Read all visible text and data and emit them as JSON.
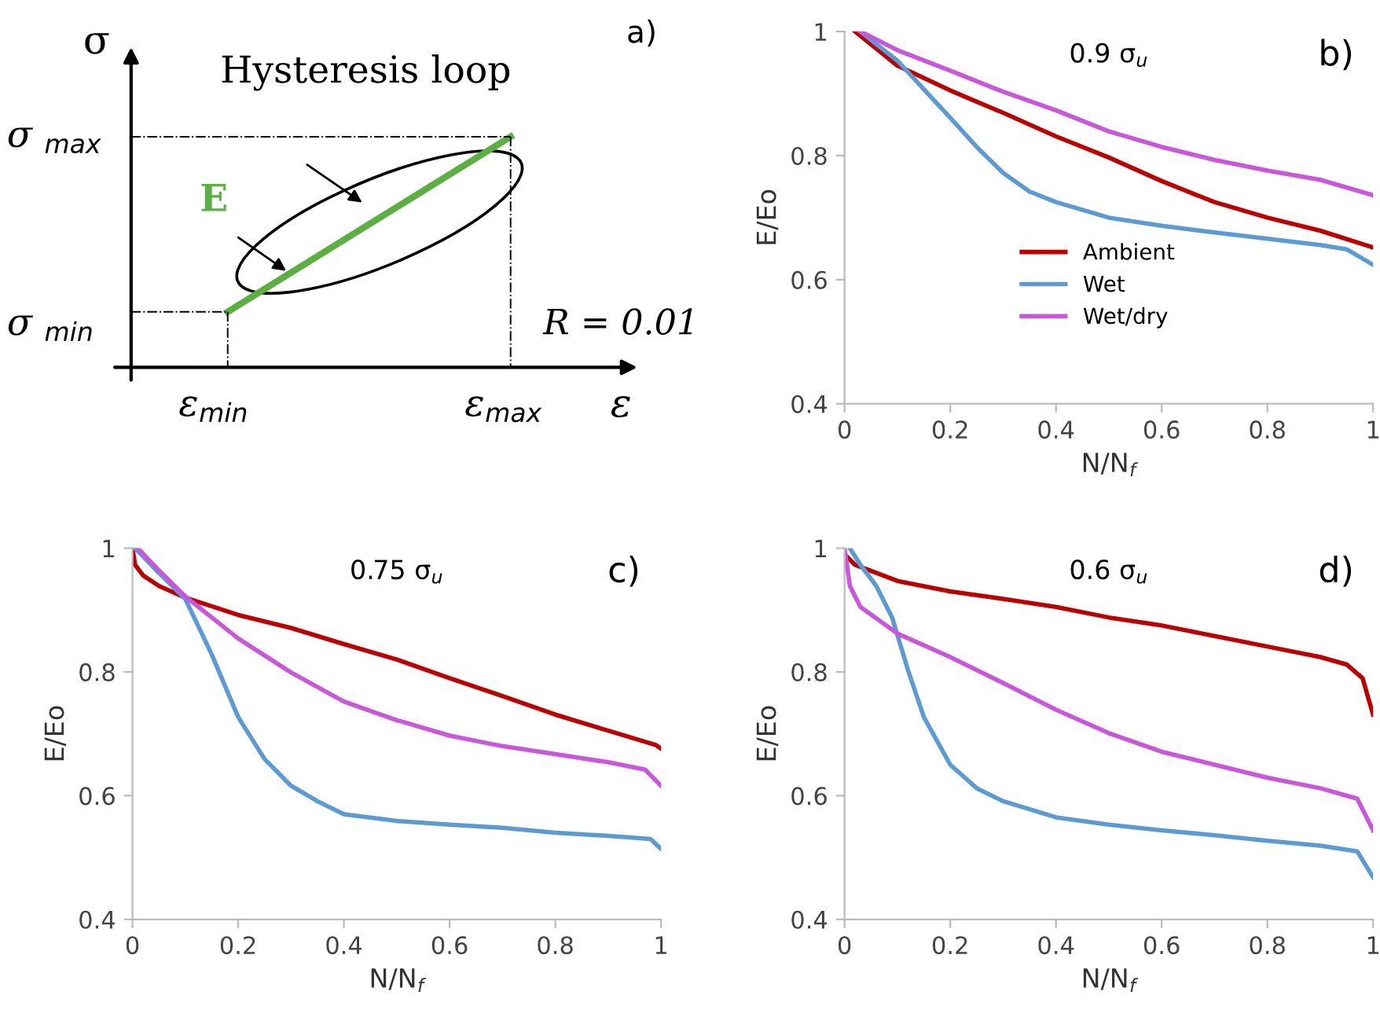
{
  "chart_data": [
    {
      "type": "other",
      "annotations": [
        "a)",
        "σ",
        "ε",
        "σ $_{max}$",
        "σ $_{min}$",
        "ε$_{min}$",
        "ε$_{max}$",
        "Hysteresis loop",
        "E",
        "R = 0.01"
      ]
    },
    {
      "type": "line",
      "xlabel": "N/N$_{f}$",
      "ylabel": "E/Eo",
      "annotations": [
        "b)",
        "0.9 σ$_{u}$"
      ],
      "xlim": [
        0,
        1
      ],
      "ylim": [
        0.4,
        1
      ],
      "xticks": [
        0,
        0.2,
        0.4,
        0.6,
        0.8,
        1
      ],
      "yticks": [
        0.4,
        0.6,
        0.8,
        1
      ],
      "grid": false,
      "legend": "bottom",
      "line_style": "solid",
      "series": [
        {
          "name": "Ambient",
          "color": "#c00000",
          "x": [
            0.02,
            0.1,
            0.2,
            0.3,
            0.4,
            0.5,
            0.6,
            0.7,
            0.8,
            0.9,
            1.0
          ],
          "values": [
            1,
            0.945,
            0.905,
            0.869,
            0.831,
            0.797,
            0.759,
            0.725,
            0.7,
            0.679,
            0.652
          ]
        },
        {
          "name": "Wet",
          "color": "#5b9bd5",
          "x": [
            0.03,
            0.1,
            0.15,
            0.2,
            0.25,
            0.3,
            0.35,
            0.4,
            0.5,
            0.6,
            0.7,
            0.8,
            0.9,
            0.95,
            1.0
          ],
          "values": [
            1,
            0.953,
            0.907,
            0.861,
            0.814,
            0.772,
            0.742,
            0.725,
            0.7,
            0.687,
            0.676,
            0.666,
            0.656,
            0.649,
            0.624
          ]
        },
        {
          "name": "Wet/dry",
          "color": "#cc55dd",
          "x": [
            0.03,
            0.1,
            0.2,
            0.3,
            0.4,
            0.5,
            0.6,
            0.7,
            0.8,
            0.9,
            1.0
          ],
          "values": [
            1,
            0.97,
            0.937,
            0.903,
            0.873,
            0.839,
            0.814,
            0.793,
            0.776,
            0.761,
            0.736
          ]
        }
      ]
    },
    {
      "type": "line",
      "xlabel": "N/N$_{f}$",
      "ylabel": "E/Eo",
      "annotations": [
        "c)",
        "0.75 σ$_{u}$"
      ],
      "xlim": [
        0,
        1
      ],
      "ylim": [
        0.4,
        1
      ],
      "xticks": [
        0,
        0.2,
        0.4,
        0.6,
        0.8,
        1
      ],
      "yticks": [
        0.4,
        0.6,
        0.8,
        1
      ],
      "grid": false,
      "line_style": "solid",
      "series": [
        {
          "color": "#c00000",
          "x": [
            0,
            0.005,
            0.02,
            0.05,
            0.1,
            0.2,
            0.3,
            0.4,
            0.5,
            0.6,
            0.7,
            0.8,
            0.9,
            0.99,
            1.0
          ],
          "values": [
            1,
            0.973,
            0.956,
            0.939,
            0.92,
            0.892,
            0.871,
            0.845,
            0.82,
            0.79,
            0.761,
            0.731,
            0.705,
            0.682,
            0.676
          ]
        },
        {
          "color": "#5b9bd5",
          "x": [
            0.005,
            0.05,
            0.1,
            0.15,
            0.2,
            0.25,
            0.3,
            0.35,
            0.4,
            0.5,
            0.6,
            0.7,
            0.8,
            0.9,
            0.98,
            1.0
          ],
          "values": [
            1,
            0.96,
            0.918,
            0.828,
            0.727,
            0.659,
            0.616,
            0.591,
            0.57,
            0.559,
            0.553,
            0.548,
            0.54,
            0.535,
            0.53,
            0.514
          ]
        },
        {
          "color": "#cc55dd",
          "x": [
            0.01,
            0.05,
            0.1,
            0.15,
            0.2,
            0.3,
            0.4,
            0.5,
            0.6,
            0.7,
            0.8,
            0.9,
            0.97,
            1.0
          ],
          "values": [
            1,
            0.964,
            0.922,
            0.888,
            0.854,
            0.799,
            0.752,
            0.722,
            0.697,
            0.68,
            0.667,
            0.654,
            0.642,
            0.616
          ]
        }
      ]
    },
    {
      "type": "line",
      "xlabel": "N/N$_{f}$",
      "ylabel": "E/Eo",
      "annotations": [
        "d)",
        "0.6 σ$_{u}$"
      ],
      "xlim": [
        0,
        1
      ],
      "ylim": [
        0.4,
        1
      ],
      "xticks": [
        0,
        0.2,
        0.4,
        0.6,
        0.8,
        1
      ],
      "yticks": [
        0.4,
        0.6,
        0.8,
        1
      ],
      "grid": false,
      "line_style": "solid",
      "series": [
        {
          "color": "#c00000",
          "x": [
            0,
            0.02,
            0.1,
            0.2,
            0.3,
            0.4,
            0.5,
            0.6,
            0.7,
            0.8,
            0.9,
            0.95,
            0.98,
            1.0
          ],
          "values": [
            0.99,
            0.973,
            0.947,
            0.93,
            0.918,
            0.905,
            0.888,
            0.875,
            0.858,
            0.841,
            0.824,
            0.812,
            0.79,
            0.731
          ]
        },
        {
          "color": "#5b9bd5",
          "x": [
            0.01,
            0.03,
            0.06,
            0.09,
            0.12,
            0.15,
            0.2,
            0.25,
            0.3,
            0.4,
            0.5,
            0.6,
            0.7,
            0.8,
            0.9,
            0.97,
            1.0
          ],
          "values": [
            1,
            0.973,
            0.939,
            0.888,
            0.803,
            0.727,
            0.65,
            0.612,
            0.591,
            0.565,
            0.553,
            0.544,
            0.536,
            0.527,
            0.519,
            0.51,
            0.468
          ]
        },
        {
          "color": "#cc55dd",
          "x": [
            0,
            0.01,
            0.03,
            0.1,
            0.2,
            0.3,
            0.4,
            0.5,
            0.6,
            0.7,
            0.8,
            0.9,
            0.97,
            1.0
          ],
          "values": [
            1,
            0.939,
            0.905,
            0.862,
            0.824,
            0.782,
            0.739,
            0.701,
            0.671,
            0.65,
            0.629,
            0.612,
            0.595,
            0.544
          ]
        }
      ]
    }
  ]
}
